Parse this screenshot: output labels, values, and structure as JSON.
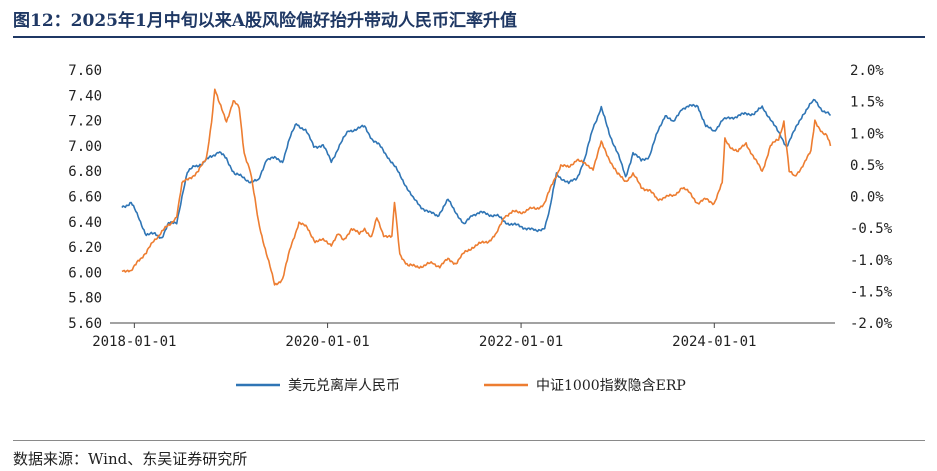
{
  "title": "图12：2025年1月中旬以来A股风险偏好抬升带动人民币汇率升值",
  "source": "数据来源：Wind、东吴证券研究所",
  "chart_data": {
    "type": "line",
    "title": "图12：2025年1月中旬以来A股风险偏好抬升带动人民币汇率升值",
    "xlabel": "",
    "ylabel": "",
    "y2label": "",
    "xlim": [
      "2017-10-01",
      "2025-04-01"
    ],
    "ylim": [
      5.6,
      7.6
    ],
    "y2lim": [
      -2.0,
      2.0
    ],
    "x_ticks": [
      "2018-01-01",
      "2020-01-01",
      "2022-01-01",
      "2024-01-01"
    ],
    "y_ticks": [
      "5.60",
      "5.80",
      "6.00",
      "6.20",
      "6.40",
      "6.60",
      "6.80",
      "7.00",
      "7.20",
      "7.40",
      "7.60"
    ],
    "y2_ticks": [
      "-2.0%",
      "-1.5%",
      "-1.0%",
      "-0.5%",
      "0.0%",
      "0.5%",
      "1.0%",
      "1.5%",
      "2.0%"
    ],
    "grid": false,
    "legend_position": "bottom",
    "series": [
      {
        "name": "美元兑离岸人民币",
        "axis": "left",
        "color": "#2f75b5",
        "points": [
          [
            "2017-11-15",
            6.52
          ],
          [
            "2017-12-20",
            6.55
          ],
          [
            "2018-01-20",
            6.42
          ],
          [
            "2018-02-15",
            6.3
          ],
          [
            "2018-03-20",
            6.3
          ],
          [
            "2018-04-15",
            6.28
          ],
          [
            "2018-05-10",
            6.38
          ],
          [
            "2018-06-10",
            6.4
          ],
          [
            "2018-06-30",
            6.6
          ],
          [
            "2018-07-20",
            6.78
          ],
          [
            "2018-08-15",
            6.85
          ],
          [
            "2018-09-15",
            6.85
          ],
          [
            "2018-10-15",
            6.92
          ],
          [
            "2018-11-15",
            6.95
          ],
          [
            "2018-12-15",
            6.9
          ],
          [
            "2019-01-15",
            6.78
          ],
          [
            "2019-02-15",
            6.75
          ],
          [
            "2019-03-15",
            6.72
          ],
          [
            "2019-04-15",
            6.72
          ],
          [
            "2019-05-15",
            6.9
          ],
          [
            "2019-06-15",
            6.9
          ],
          [
            "2019-07-15",
            6.88
          ],
          [
            "2019-08-10",
            7.05
          ],
          [
            "2019-09-05",
            7.18
          ],
          [
            "2019-10-10",
            7.12
          ],
          [
            "2019-11-10",
            7.0
          ],
          [
            "2019-12-15",
            7.0
          ],
          [
            "2020-01-15",
            6.88
          ],
          [
            "2020-02-15",
            7.0
          ],
          [
            "2020-03-20",
            7.12
          ],
          [
            "2020-05-20",
            7.15
          ],
          [
            "2020-06-20",
            7.05
          ],
          [
            "2020-07-15",
            7.0
          ],
          [
            "2020-08-15",
            6.92
          ],
          [
            "2020-09-15",
            6.82
          ],
          [
            "2020-10-20",
            6.7
          ],
          [
            "2020-11-20",
            6.58
          ],
          [
            "2020-12-20",
            6.52
          ],
          [
            "2021-01-20",
            6.47
          ],
          [
            "2021-02-20",
            6.45
          ],
          [
            "2021-03-31",
            6.57
          ],
          [
            "2021-04-30",
            6.48
          ],
          [
            "2021-05-31",
            6.37
          ],
          [
            "2021-06-30",
            6.46
          ],
          [
            "2021-07-31",
            6.47
          ],
          [
            "2021-08-31",
            6.46
          ],
          [
            "2021-09-30",
            6.45
          ],
          [
            "2021-10-31",
            6.4
          ],
          [
            "2021-11-30",
            6.38
          ],
          [
            "2021-12-31",
            6.36
          ],
          [
            "2022-01-31",
            6.35
          ],
          [
            "2022-02-28",
            6.32
          ],
          [
            "2022-03-31",
            6.36
          ],
          [
            "2022-04-20",
            6.5
          ],
          [
            "2022-05-15",
            6.78
          ],
          [
            "2022-06-30",
            6.7
          ],
          [
            "2022-07-31",
            6.75
          ],
          [
            "2022-08-31",
            6.9
          ],
          [
            "2022-09-30",
            7.15
          ],
          [
            "2022-10-31",
            7.3
          ],
          [
            "2022-11-30",
            7.1
          ],
          [
            "2022-12-31",
            6.95
          ],
          [
            "2023-01-31",
            6.75
          ],
          [
            "2023-02-28",
            6.95
          ],
          [
            "2023-03-31",
            6.88
          ],
          [
            "2023-04-30",
            6.92
          ],
          [
            "2023-05-31",
            7.1
          ],
          [
            "2023-06-30",
            7.25
          ],
          [
            "2023-07-31",
            7.18
          ],
          [
            "2023-08-31",
            7.3
          ],
          [
            "2023-09-30",
            7.31
          ],
          [
            "2023-10-31",
            7.32
          ],
          [
            "2023-11-30",
            7.15
          ],
          [
            "2023-12-31",
            7.12
          ],
          [
            "2024-01-31",
            7.2
          ],
          [
            "2024-02-29",
            7.22
          ],
          [
            "2024-03-31",
            7.24
          ],
          [
            "2024-04-30",
            7.25
          ],
          [
            "2024-05-31",
            7.26
          ],
          [
            "2024-06-30",
            7.3
          ],
          [
            "2024-07-31",
            7.22
          ],
          [
            "2024-08-31",
            7.1
          ],
          [
            "2024-09-30",
            7.0
          ],
          [
            "2024-10-31",
            7.12
          ],
          [
            "2024-11-30",
            7.25
          ],
          [
            "2024-12-31",
            7.33
          ],
          [
            "2025-01-15",
            7.36
          ],
          [
            "2025-02-15",
            7.28
          ],
          [
            "2025-03-15",
            7.24
          ]
        ]
      },
      {
        "name": "中证1000指数隐含ERP",
        "axis": "right",
        "color": "#ed7d31",
        "points": [
          [
            "2017-11-15",
            -1.15
          ],
          [
            "2017-12-20",
            -1.2
          ],
          [
            "2018-01-15",
            -1.0
          ],
          [
            "2018-02-15",
            -0.9
          ],
          [
            "2018-03-15",
            -0.7
          ],
          [
            "2018-04-15",
            -0.55
          ],
          [
            "2018-05-15",
            -0.45
          ],
          [
            "2018-06-10",
            -0.3
          ],
          [
            "2018-06-30",
            0.2
          ],
          [
            "2018-07-31",
            0.3
          ],
          [
            "2018-08-31",
            0.4
          ],
          [
            "2018-09-30",
            0.6
          ],
          [
            "2018-10-20",
            1.2
          ],
          [
            "2018-11-01",
            1.7
          ],
          [
            "2018-11-15",
            1.5
          ],
          [
            "2018-12-15",
            1.2
          ],
          [
            "2019-01-10",
            1.5
          ],
          [
            "2019-02-01",
            1.4
          ],
          [
            "2019-02-20",
            0.7
          ],
          [
            "2019-03-15",
            0.4
          ],
          [
            "2019-04-15",
            -0.4
          ],
          [
            "2019-05-15",
            -0.9
          ],
          [
            "2019-06-15",
            -1.4
          ],
          [
            "2019-07-15",
            -1.3
          ],
          [
            "2019-08-15",
            -0.8
          ],
          [
            "2019-09-15",
            -0.4
          ],
          [
            "2019-10-15",
            -0.5
          ],
          [
            "2019-11-15",
            -0.7
          ],
          [
            "2019-12-15",
            -0.7
          ],
          [
            "2020-01-15",
            -0.75
          ],
          [
            "2020-02-10",
            -0.6
          ],
          [
            "2020-03-01",
            -0.7
          ],
          [
            "2020-03-31",
            -0.5
          ],
          [
            "2020-04-30",
            -0.6
          ],
          [
            "2020-05-20",
            -0.5
          ],
          [
            "2020-06-15",
            -0.65
          ],
          [
            "2020-07-05",
            -0.35
          ],
          [
            "2020-07-31",
            -0.6
          ],
          [
            "2020-08-31",
            -0.65
          ],
          [
            "2020-09-10",
            -0.1
          ],
          [
            "2020-09-30",
            -0.9
          ],
          [
            "2020-10-31",
            -1.1
          ],
          [
            "2020-11-30",
            -1.1
          ],
          [
            "2020-12-31",
            -1.1
          ],
          [
            "2021-01-31",
            -1.05
          ],
          [
            "2021-02-28",
            -1.1
          ],
          [
            "2021-03-31",
            -1.0
          ],
          [
            "2021-04-30",
            -1.05
          ],
          [
            "2021-05-31",
            -0.9
          ],
          [
            "2021-06-30",
            -0.8
          ],
          [
            "2021-07-31",
            -0.75
          ],
          [
            "2021-08-31",
            -0.7
          ],
          [
            "2021-09-30",
            -0.6
          ],
          [
            "2021-10-31",
            -0.3
          ],
          [
            "2021-11-30",
            -0.25
          ],
          [
            "2021-12-31",
            -0.25
          ],
          [
            "2022-01-31",
            -0.2
          ],
          [
            "2022-02-28",
            -0.2
          ],
          [
            "2022-03-31",
            -0.1
          ],
          [
            "2022-04-30",
            0.2
          ],
          [
            "2022-05-31",
            0.5
          ],
          [
            "2022-06-30",
            0.45
          ],
          [
            "2022-07-31",
            0.6
          ],
          [
            "2022-08-31",
            0.5
          ],
          [
            "2022-09-30",
            0.45
          ],
          [
            "2022-10-31",
            0.85
          ],
          [
            "2022-11-30",
            0.6
          ],
          [
            "2022-12-31",
            0.35
          ],
          [
            "2023-01-31",
            0.25
          ],
          [
            "2023-02-28",
            0.35
          ],
          [
            "2023-03-31",
            0.15
          ],
          [
            "2023-04-30",
            0.1
          ],
          [
            "2023-05-31",
            -0.05
          ],
          [
            "2023-06-30",
            0.0
          ],
          [
            "2023-07-31",
            0.0
          ],
          [
            "2023-08-31",
            0.15
          ],
          [
            "2023-09-30",
            0.05
          ],
          [
            "2023-10-31",
            -0.1
          ],
          [
            "2023-11-30",
            -0.05
          ],
          [
            "2023-12-31",
            -0.1
          ],
          [
            "2024-01-31",
            0.2
          ],
          [
            "2024-02-10",
            0.9
          ],
          [
            "2024-02-29",
            0.8
          ],
          [
            "2024-03-31",
            0.7
          ],
          [
            "2024-04-30",
            0.85
          ],
          [
            "2024-05-31",
            0.6
          ],
          [
            "2024-06-30",
            0.4
          ],
          [
            "2024-07-31",
            0.8
          ],
          [
            "2024-08-31",
            0.9
          ],
          [
            "2024-09-20",
            1.2
          ],
          [
            "2024-10-10",
            0.4
          ],
          [
            "2024-10-31",
            0.3
          ],
          [
            "2024-11-30",
            0.5
          ],
          [
            "2024-12-31",
            0.7
          ],
          [
            "2025-01-15",
            1.2
          ],
          [
            "2025-02-15",
            1.0
          ],
          [
            "2025-03-01",
            0.95
          ],
          [
            "2025-03-15",
            0.8
          ]
        ]
      }
    ]
  }
}
